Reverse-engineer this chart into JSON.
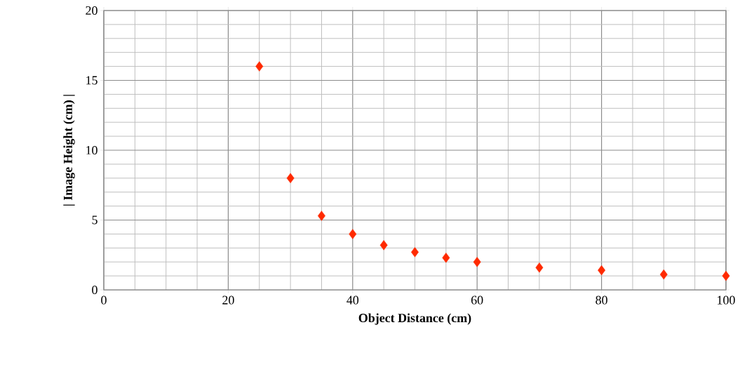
{
  "chart_data": {
    "type": "scatter",
    "xlabel": "Object Distance (cm)",
    "ylabel": "| Image Height (cm) |",
    "x": [
      25,
      30,
      35,
      40,
      45,
      50,
      55,
      60,
      70,
      80,
      90,
      100
    ],
    "values": [
      16,
      8,
      5.3,
      4,
      3.2,
      2.7,
      2.3,
      2,
      1.6,
      1.4,
      1.1,
      1
    ],
    "color": "#ff2a00",
    "marker": "diamond",
    "grid": true,
    "xlim": [
      0,
      100
    ],
    "ylim": [
      0,
      20
    ],
    "xticks": [
      0,
      20,
      40,
      60,
      80,
      100
    ],
    "yticks": [
      0,
      5,
      10,
      15,
      20
    ]
  }
}
